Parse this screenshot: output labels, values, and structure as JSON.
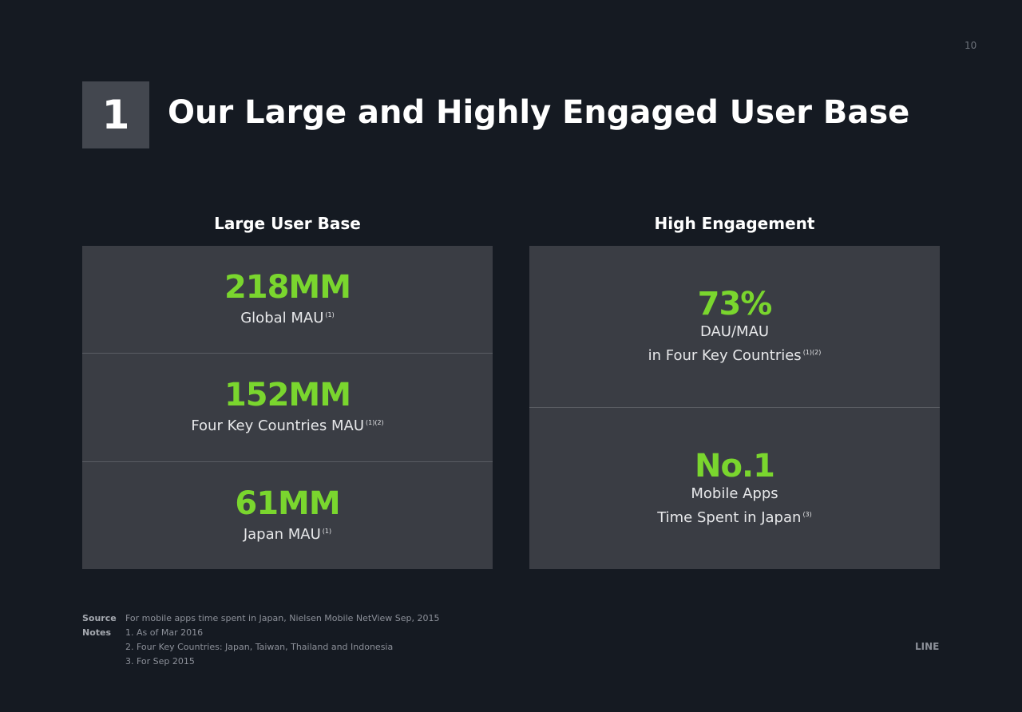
{
  "slide": {
    "page_number": "10",
    "section_number": "1",
    "title": "Our Large and Highly Engaged User Base",
    "brand": "LINE"
  },
  "columns": [
    {
      "heading": "Large User Base",
      "metrics": [
        {
          "value": "218MM",
          "label": "Global MAU",
          "note": "(1)"
        },
        {
          "value": "152MM",
          "label": "Four Key Countries MAU",
          "note": "(1)(2)"
        },
        {
          "value": "61MM",
          "label": "Japan MAU",
          "note": "(1)"
        }
      ]
    },
    {
      "heading": "High Engagement",
      "metrics": [
        {
          "value": "73%",
          "label_line1": "DAU/MAU",
          "label_line2": "in Four Key Countries",
          "note": "(1)(2)"
        },
        {
          "value": "No.1",
          "label_line1": "Mobile Apps",
          "label_line2": "Time Spent in Japan",
          "note": "(3)"
        }
      ]
    }
  ],
  "footnotes": {
    "source_key": "Source",
    "source_text": "For mobile apps time spent in Japan, Nielsen Mobile NetView Sep, 2015",
    "notes_key": "Notes",
    "notes": [
      "1.  As of Mar 2016",
      "2.  Four Key Countries: Japan, Taiwan, Thailand and Indonesia",
      "3.  For Sep 2015"
    ]
  },
  "colors": {
    "background": "#151a22",
    "panel": "#3a3d44",
    "accent_green": "#7ad62e",
    "section_box": "#43474f"
  }
}
